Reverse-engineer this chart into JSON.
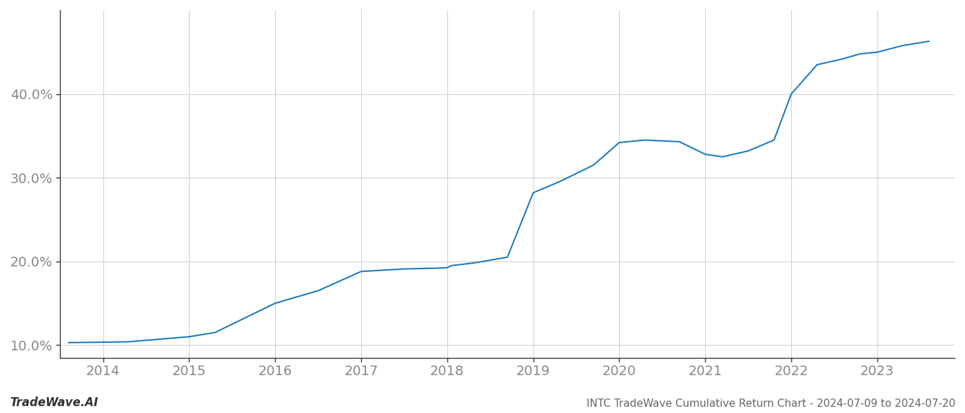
{
  "x_values": [
    2013.6,
    2014.0,
    2014.3,
    2015.0,
    2015.3,
    2015.7,
    2016.0,
    2016.5,
    2017.0,
    2017.5,
    2017.9,
    2018.0,
    2018.05,
    2018.3,
    2018.7,
    2019.0,
    2019.3,
    2019.7,
    2020.0,
    2020.3,
    2020.7,
    2021.0,
    2021.2,
    2021.5,
    2021.8,
    2022.0,
    2022.3,
    2022.6,
    2022.8,
    2023.0,
    2023.3,
    2023.6
  ],
  "y_values": [
    10.3,
    10.35,
    10.4,
    11.0,
    11.5,
    13.5,
    15.0,
    16.5,
    18.8,
    19.1,
    19.2,
    19.25,
    19.5,
    19.8,
    20.5,
    28.2,
    29.5,
    31.5,
    34.2,
    34.5,
    34.3,
    32.8,
    32.5,
    33.2,
    34.5,
    40.0,
    43.5,
    44.2,
    44.8,
    45.0,
    45.8,
    46.3
  ],
  "line_color": "#1a7abf",
  "line_width": 1.5,
  "background_color": "#ffffff",
  "grid_color": "#cccccc",
  "title": "INTC TradeWave Cumulative Return Chart - 2024-07-09 to 2024-07-20",
  "watermark": "TradeWave.AI",
  "xlim": [
    2013.5,
    2023.9
  ],
  "ylim": [
    8.5,
    50.0
  ],
  "xtick_labels": [
    "2014",
    "2015",
    "2016",
    "2017",
    "2018",
    "2019",
    "2020",
    "2021",
    "2022",
    "2023"
  ],
  "xtick_positions": [
    2014,
    2015,
    2016,
    2017,
    2018,
    2019,
    2020,
    2021,
    2022,
    2023
  ],
  "ytick_values": [
    10.0,
    20.0,
    30.0,
    40.0
  ],
  "title_fontsize": 11,
  "watermark_fontsize": 12,
  "tick_fontsize": 14
}
